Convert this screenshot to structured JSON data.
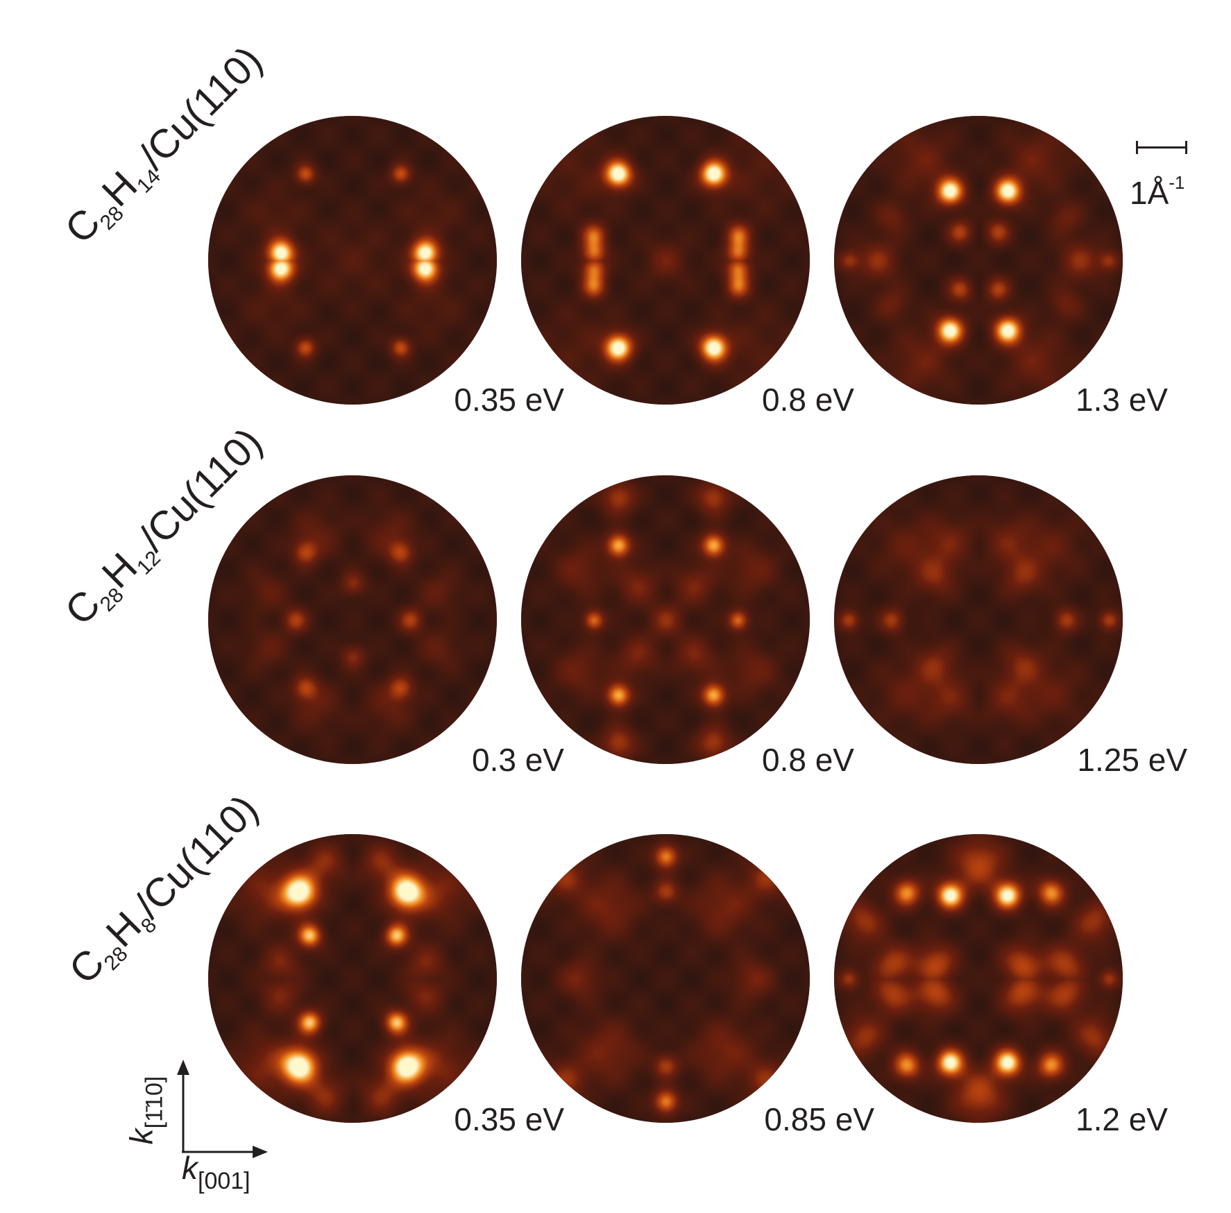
{
  "rows": [
    {
      "label_main": "C",
      "label_sub1": "28",
      "label_h": "H",
      "label_sub2": "14",
      "label_rest": "/Cu(110)",
      "energies": [
        "0.35 eV",
        "0.8 eV",
        "1.3 eV"
      ]
    },
    {
      "label_main": "C",
      "label_sub1": "28",
      "label_h": "H",
      "label_sub2": "12",
      "label_rest": "/Cu(110)",
      "energies": [
        "0.3 eV",
        "0.8 eV",
        "1.25 eV"
      ]
    },
    {
      "label_main": "C",
      "label_sub1": "28",
      "label_h": "H",
      "label_sub2": "8",
      "label_rest": "/Cu(110)",
      "energies": [
        "0.35 eV",
        "0.85 eV",
        "1.2 eV"
      ]
    }
  ],
  "scale_bar": {
    "value": "1Å",
    "exponent": "-1"
  },
  "axes": {
    "vertical_k": "k",
    "vertical_sub": "[1̄10]",
    "horizontal_k": "k",
    "horizontal_sub": "[001]"
  },
  "colormap": {
    "low": "#2b1510",
    "mid": "#b8400f",
    "high": "#fff6c8"
  }
}
